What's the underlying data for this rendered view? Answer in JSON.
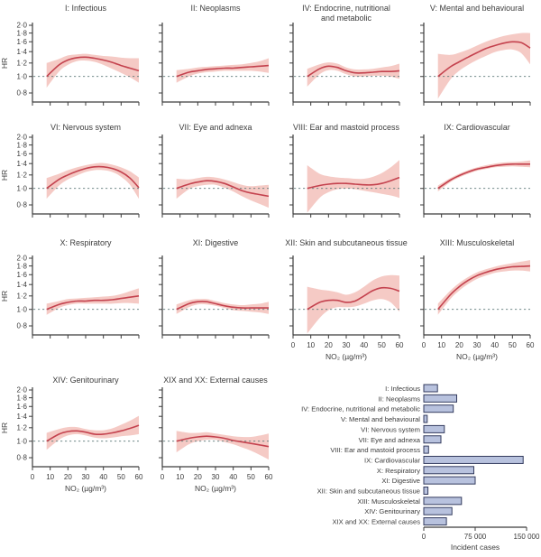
{
  "axes": {
    "hr_label": "HR",
    "no2_label": "NO₂ (µg/m³)",
    "yticks": [
      2.0,
      1.8,
      1.6,
      1.4,
      1.2,
      1.0,
      0.8
    ],
    "xticks": [
      0,
      10,
      20,
      30,
      40,
      50,
      60
    ],
    "yscale": "log",
    "ref_line": 1.0
  },
  "colors": {
    "line": "#c4424e",
    "band": "#f5cac5",
    "ref_line": "#5f7a7a",
    "axis": "#3c3c3c",
    "text": "#3c3c3c",
    "bar_fill": "#b8c2de",
    "bar_stroke": "#333b5e"
  },
  "chart_data": [
    {
      "type": "line",
      "id": "i-infectious",
      "title_lines": [
        "I: Infectious"
      ],
      "row": 0,
      "col": 0,
      "show_x_labels": false,
      "x": [
        8,
        15,
        20,
        25,
        30,
        35,
        40,
        45,
        50,
        55,
        60
      ],
      "hr": [
        1.0,
        1.17,
        1.25,
        1.29,
        1.3,
        1.28,
        1.25,
        1.21,
        1.16,
        1.12,
        1.08
      ],
      "lower": [
        0.86,
        1.07,
        1.17,
        1.23,
        1.24,
        1.22,
        1.17,
        1.11,
        1.05,
        0.99,
        0.92
      ],
      "upper": [
        1.2,
        1.27,
        1.33,
        1.35,
        1.36,
        1.34,
        1.32,
        1.31,
        1.29,
        1.28,
        1.28
      ]
    },
    {
      "type": "line",
      "id": "ii-neoplasms",
      "title_lines": [
        "II: Neoplasms"
      ],
      "row": 0,
      "col": 1,
      "show_x_labels": false,
      "x": [
        8,
        15,
        20,
        25,
        30,
        35,
        40,
        45,
        50,
        55,
        60
      ],
      "hr": [
        1.0,
        1.06,
        1.08,
        1.1,
        1.11,
        1.12,
        1.12,
        1.13,
        1.14,
        1.15,
        1.16
      ],
      "lower": [
        0.92,
        1.0,
        1.04,
        1.06,
        1.07,
        1.08,
        1.08,
        1.08,
        1.08,
        1.07,
        1.05
      ],
      "upper": [
        1.09,
        1.11,
        1.13,
        1.14,
        1.15,
        1.16,
        1.17,
        1.18,
        1.2,
        1.23,
        1.28
      ]
    },
    {
      "type": "line",
      "id": "iv-endocrine",
      "title_lines": [
        "IV: Endocrine, nutritional",
        "and metabolic"
      ],
      "row": 0,
      "col": 2,
      "show_x_labels": false,
      "x": [
        8,
        15,
        20,
        25,
        30,
        35,
        40,
        45,
        50,
        55,
        60
      ],
      "hr": [
        1.0,
        1.11,
        1.15,
        1.13,
        1.08,
        1.05,
        1.05,
        1.06,
        1.07,
        1.07,
        1.08
      ],
      "lower": [
        0.87,
        1.03,
        1.09,
        1.08,
        1.03,
        1.0,
        1.0,
        1.01,
        1.01,
        1.0,
        0.97
      ],
      "upper": [
        1.11,
        1.18,
        1.21,
        1.19,
        1.13,
        1.1,
        1.1,
        1.11,
        1.13,
        1.15,
        1.19
      ]
    },
    {
      "type": "line",
      "id": "v-mental",
      "title_lines": [
        "V: Mental and behavioural"
      ],
      "row": 0,
      "col": 3,
      "show_x_labels": false,
      "x": [
        8,
        15,
        20,
        25,
        30,
        35,
        40,
        45,
        50,
        55,
        60
      ],
      "hr": [
        1.0,
        1.14,
        1.22,
        1.3,
        1.38,
        1.46,
        1.52,
        1.57,
        1.6,
        1.58,
        1.47
      ],
      "lower": [
        0.74,
        0.96,
        1.08,
        1.17,
        1.25,
        1.32,
        1.39,
        1.43,
        1.44,
        1.37,
        1.18
      ],
      "upper": [
        1.36,
        1.34,
        1.38,
        1.44,
        1.52,
        1.6,
        1.67,
        1.73,
        1.77,
        1.8,
        1.8
      ]
    },
    {
      "type": "line",
      "id": "vi-nervous",
      "title_lines": [
        "VI: Nervous system"
      ],
      "row": 1,
      "col": 0,
      "show_x_labels": false,
      "x": [
        8,
        15,
        20,
        25,
        30,
        35,
        40,
        45,
        50,
        55,
        60
      ],
      "hr": [
        1.0,
        1.13,
        1.2,
        1.26,
        1.31,
        1.34,
        1.34,
        1.31,
        1.25,
        1.15,
        1.01
      ],
      "lower": [
        0.87,
        1.04,
        1.13,
        1.19,
        1.25,
        1.28,
        1.28,
        1.25,
        1.17,
        1.05,
        0.87
      ],
      "upper": [
        1.15,
        1.22,
        1.28,
        1.33,
        1.37,
        1.4,
        1.41,
        1.38,
        1.33,
        1.26,
        1.16
      ]
    },
    {
      "type": "line",
      "id": "vii-eye",
      "title_lines": [
        "VII: Eye and adnexa"
      ],
      "row": 1,
      "col": 1,
      "show_x_labels": false,
      "x": [
        8,
        15,
        20,
        25,
        30,
        35,
        40,
        45,
        50,
        55,
        60
      ],
      "hr": [
        1.0,
        1.06,
        1.09,
        1.11,
        1.1,
        1.07,
        1.02,
        0.97,
        0.94,
        0.92,
        0.9
      ],
      "lower": [
        0.87,
        0.99,
        1.03,
        1.05,
        1.05,
        1.01,
        0.96,
        0.9,
        0.85,
        0.81,
        0.77
      ],
      "upper": [
        1.14,
        1.13,
        1.15,
        1.17,
        1.16,
        1.13,
        1.09,
        1.05,
        1.03,
        1.04,
        1.05
      ]
    },
    {
      "type": "line",
      "id": "viii-ear",
      "title_lines": [
        "VIII: Ear and mastoid process"
      ],
      "row": 1,
      "col": 2,
      "show_x_labels": false,
      "x": [
        8,
        15,
        20,
        25,
        30,
        35,
        40,
        45,
        50,
        55,
        60
      ],
      "hr": [
        1.0,
        1.04,
        1.06,
        1.07,
        1.07,
        1.06,
        1.05,
        1.05,
        1.07,
        1.11,
        1.16
      ],
      "lower": [
        0.72,
        0.88,
        0.95,
        0.99,
        1.0,
        0.99,
        0.97,
        0.95,
        0.93,
        0.91,
        0.88
      ],
      "upper": [
        1.37,
        1.22,
        1.18,
        1.16,
        1.15,
        1.14,
        1.14,
        1.17,
        1.23,
        1.33,
        1.47
      ]
    },
    {
      "type": "line",
      "id": "ix-cardiovascular",
      "title_lines": [
        "IX: Cardiovascular"
      ],
      "row": 1,
      "col": 3,
      "show_x_labels": false,
      "x": [
        8,
        15,
        20,
        25,
        30,
        35,
        40,
        45,
        50,
        55,
        60
      ],
      "hr": [
        1.0,
        1.12,
        1.19,
        1.25,
        1.3,
        1.33,
        1.36,
        1.38,
        1.39,
        1.39,
        1.39
      ],
      "lower": [
        0.96,
        1.09,
        1.16,
        1.22,
        1.27,
        1.3,
        1.33,
        1.34,
        1.35,
        1.34,
        1.33
      ],
      "upper": [
        1.04,
        1.15,
        1.22,
        1.28,
        1.33,
        1.37,
        1.4,
        1.42,
        1.43,
        1.44,
        1.46
      ]
    },
    {
      "type": "line",
      "id": "x-respiratory",
      "title_lines": [
        "X: Respiratory"
      ],
      "row": 2,
      "col": 0,
      "show_x_labels": false,
      "x": [
        8,
        15,
        20,
        25,
        30,
        35,
        40,
        45,
        50,
        55,
        60
      ],
      "hr": [
        1.0,
        1.07,
        1.1,
        1.12,
        1.12,
        1.13,
        1.13,
        1.14,
        1.16,
        1.18,
        1.2
      ],
      "lower": [
        0.93,
        1.02,
        1.06,
        1.08,
        1.08,
        1.08,
        1.08,
        1.08,
        1.09,
        1.09,
        1.08
      ],
      "upper": [
        1.08,
        1.12,
        1.15,
        1.16,
        1.17,
        1.18,
        1.19,
        1.2,
        1.23,
        1.28,
        1.33
      ]
    },
    {
      "type": "line",
      "id": "xi-digestive",
      "title_lines": [
        "XI: Digestive"
      ],
      "row": 2,
      "col": 1,
      "show_x_labels": false,
      "x": [
        8,
        15,
        20,
        25,
        30,
        35,
        40,
        45,
        50,
        55,
        60
      ],
      "hr": [
        1.0,
        1.08,
        1.11,
        1.11,
        1.08,
        1.05,
        1.03,
        1.02,
        1.02,
        1.02,
        1.02
      ],
      "lower": [
        0.94,
        1.03,
        1.07,
        1.07,
        1.05,
        1.02,
        0.99,
        0.98,
        0.97,
        0.96,
        0.94
      ],
      "upper": [
        1.07,
        1.13,
        1.15,
        1.15,
        1.12,
        1.09,
        1.07,
        1.06,
        1.07,
        1.08,
        1.11
      ]
    },
    {
      "type": "line",
      "id": "xii-skin",
      "title_lines": [
        "XII: Skin and subcutaneous tissue"
      ],
      "row": 2,
      "col": 2,
      "show_x_labels": true,
      "x": [
        8,
        15,
        20,
        25,
        30,
        35,
        40,
        45,
        50,
        55,
        60
      ],
      "hr": [
        1.0,
        1.1,
        1.13,
        1.13,
        1.1,
        1.12,
        1.2,
        1.29,
        1.34,
        1.33,
        1.28
      ],
      "lower": [
        0.72,
        0.89,
        0.99,
        1.03,
        1.03,
        1.04,
        1.08,
        1.13,
        1.15,
        1.1,
        0.97
      ],
      "upper": [
        1.36,
        1.31,
        1.29,
        1.26,
        1.22,
        1.26,
        1.36,
        1.48,
        1.56,
        1.59,
        1.58
      ]
    },
    {
      "type": "line",
      "id": "xiii-musculoskeletal",
      "title_lines": [
        "XIII: Musculoskeletal"
      ],
      "row": 2,
      "col": 3,
      "show_x_labels": true,
      "x": [
        8,
        15,
        20,
        25,
        30,
        35,
        40,
        45,
        50,
        55,
        60
      ],
      "hr": [
        1.0,
        1.22,
        1.36,
        1.48,
        1.58,
        1.65,
        1.71,
        1.75,
        1.78,
        1.79,
        1.8
      ],
      "lower": [
        0.93,
        1.15,
        1.29,
        1.41,
        1.51,
        1.58,
        1.64,
        1.67,
        1.69,
        1.69,
        1.67
      ],
      "upper": [
        1.08,
        1.29,
        1.43,
        1.55,
        1.65,
        1.72,
        1.78,
        1.83,
        1.87,
        1.91,
        1.95
      ]
    },
    {
      "type": "line",
      "id": "xiv-genitourinary",
      "title_lines": [
        "XIV: Genitourinary"
      ],
      "row": 3,
      "col": 0,
      "show_x_labels": true,
      "x": [
        8,
        15,
        20,
        25,
        30,
        35,
        40,
        45,
        50,
        55,
        60
      ],
      "hr": [
        1.0,
        1.1,
        1.14,
        1.15,
        1.13,
        1.1,
        1.1,
        1.12,
        1.15,
        1.19,
        1.24
      ],
      "lower": [
        0.89,
        1.02,
        1.08,
        1.1,
        1.08,
        1.05,
        1.04,
        1.05,
        1.07,
        1.08,
        1.1
      ],
      "upper": [
        1.12,
        1.18,
        1.21,
        1.21,
        1.18,
        1.16,
        1.16,
        1.19,
        1.25,
        1.32,
        1.41
      ]
    },
    {
      "type": "line",
      "id": "xix-xx-external",
      "title_lines": [
        "XIX and XX: External causes"
      ],
      "row": 3,
      "col": 1,
      "show_x_labels": true,
      "x": [
        8,
        15,
        20,
        25,
        30,
        35,
        40,
        45,
        50,
        55,
        60
      ],
      "hr": [
        1.0,
        1.04,
        1.06,
        1.07,
        1.06,
        1.04,
        1.01,
        0.99,
        0.97,
        0.95,
        0.93
      ],
      "lower": [
        0.86,
        0.96,
        1.0,
        1.02,
        1.02,
        0.99,
        0.96,
        0.92,
        0.88,
        0.83,
        0.78
      ],
      "upper": [
        1.15,
        1.12,
        1.12,
        1.13,
        1.11,
        1.09,
        1.07,
        1.06,
        1.06,
        1.08,
        1.11
      ]
    },
    {
      "type": "bar",
      "id": "incident-cases",
      "orientation": "horizontal",
      "categories": [
        "I: Infectious",
        "II: Neoplasms",
        "IV: Endocrine, nutritional and metabolic",
        "V: Mental and behavioural",
        "VI: Nervous system",
        "VII: Eye and adnexa",
        "VIII: Ear and mastoid process",
        "IX: Cardiovascular",
        "X: Respiratory",
        "XI: Digestive",
        "XII: Skin and subcutaneous tissue",
        "XIII: Musculoskeletal",
        "XIV: Genitourinary",
        "XIX and XX: External causes"
      ],
      "values": [
        20000,
        48000,
        43000,
        5000,
        30000,
        25000,
        7000,
        145000,
        73000,
        75000,
        6000,
        55000,
        41000,
        33000
      ],
      "xlim": [
        0,
        150000
      ],
      "xticks": [
        0,
        75000,
        150000
      ],
      "xtick_labels": [
        "0",
        "75 000",
        "150 000"
      ],
      "xlabel": "Incident cases"
    }
  ]
}
